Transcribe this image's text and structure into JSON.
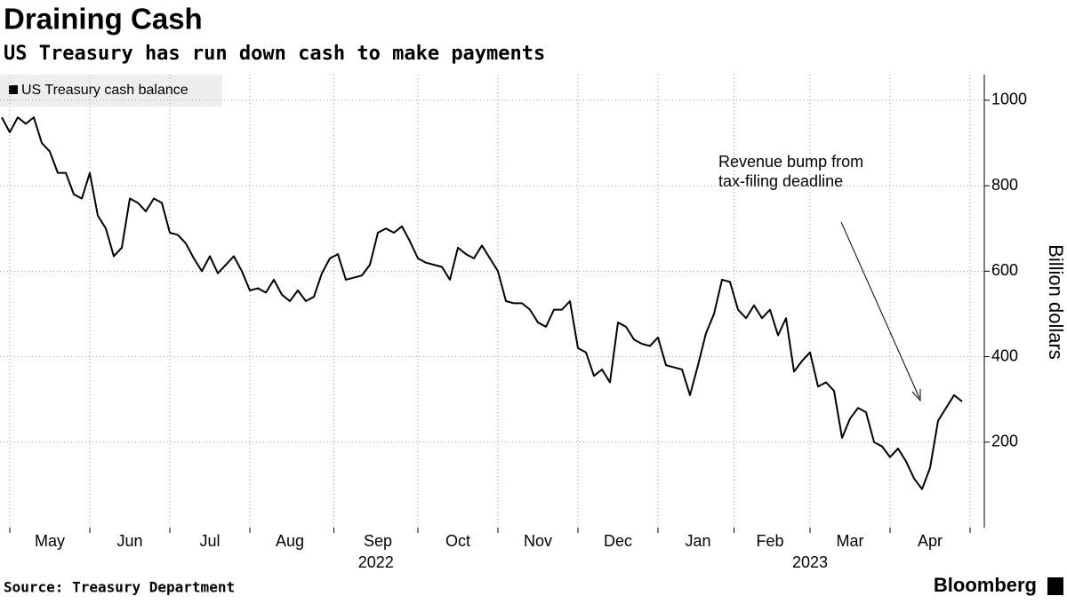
{
  "chart_data": {
    "type": "line",
    "title": "Draining Cash",
    "subtitle": "US Treasury has run down cash to make payments",
    "y_axis_label": "Billion dollars",
    "annotation": "Revenue bump from\ntax-filing deadline",
    "source": "Source: Treasury Department",
    "brand": "Bloomberg",
    "years": [
      "2022",
      "2023"
    ],
    "categories": [
      null,
      null,
      null,
      null,
      null,
      null,
      "May",
      null,
      null,
      null,
      null,
      null,
      null,
      null,
      null,
      null,
      "Jun",
      null,
      null,
      null,
      null,
      null,
      null,
      null,
      null,
      null,
      "Jul",
      null,
      null,
      null,
      null,
      null,
      null,
      null,
      null,
      null,
      "Aug",
      null,
      null,
      null,
      null,
      null,
      null,
      null,
      null,
      null,
      null,
      "Sep",
      null,
      null,
      null,
      null,
      null,
      null,
      null,
      null,
      null,
      "Oct",
      null,
      null,
      null,
      null,
      null,
      null,
      null,
      null,
      null,
      "Nov",
      null,
      null,
      null,
      null,
      null,
      null,
      null,
      null,
      null,
      "Dec",
      null,
      null,
      null,
      null,
      null,
      null,
      null,
      null,
      null,
      "Jan",
      null,
      null,
      null,
      null,
      null,
      null,
      null,
      null,
      "Feb",
      null,
      null,
      null,
      null,
      null,
      null,
      null,
      null,
      null,
      "Mar",
      null,
      null,
      null,
      null,
      null,
      null,
      null,
      null,
      null,
      "Apr",
      null,
      null,
      null,
      null
    ],
    "series": [
      {
        "name": "US Treasury cash balance",
        "color": "#000000",
        "values": [
          960,
          925,
          960,
          945,
          960,
          900,
          880,
          830,
          830,
          780,
          770,
          830,
          730,
          700,
          635,
          655,
          770,
          760,
          740,
          770,
          760,
          690,
          685,
          665,
          630,
          600,
          635,
          595,
          615,
          635,
          600,
          555,
          560,
          550,
          580,
          545,
          530,
          555,
          530,
          540,
          595,
          630,
          640,
          580,
          585,
          590,
          615,
          690,
          700,
          690,
          705,
          670,
          630,
          620,
          615,
          610,
          580,
          655,
          640,
          630,
          660,
          630,
          600,
          530,
          525,
          525,
          510,
          480,
          470,
          510,
          510,
          530,
          420,
          410,
          355,
          370,
          340,
          480,
          470,
          440,
          430,
          425,
          445,
          380,
          375,
          370,
          310,
          380,
          455,
          500,
          580,
          575,
          510,
          490,
          520,
          490,
          510,
          450,
          490,
          365,
          390,
          410,
          330,
          340,
          320,
          210,
          255,
          280,
          270,
          200,
          190,
          165,
          185,
          155,
          115,
          90,
          140,
          250,
          280,
          310,
          295
        ]
      }
    ],
    "ylim": [
      0,
      1060
    ],
    "yticks": [
      200,
      400,
      600,
      800,
      1000
    ],
    "grid": true
  }
}
